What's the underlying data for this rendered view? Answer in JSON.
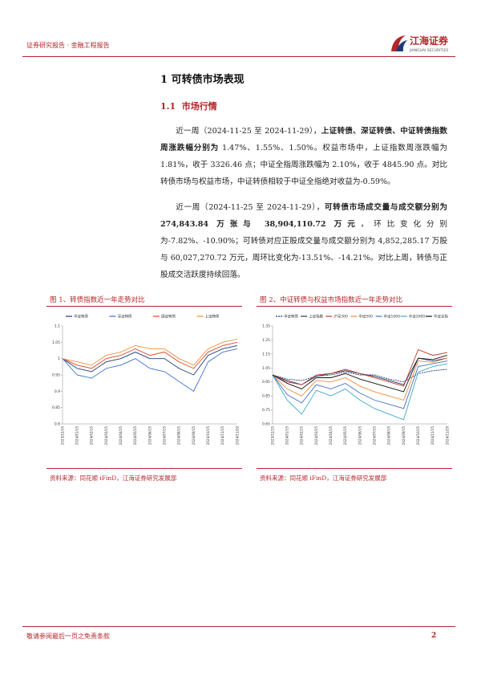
{
  "header": {
    "title": "证券研究报告 · 金融工程报告",
    "brand": "江海证券",
    "brand_en": "JIANGHAI SECURITIES"
  },
  "section": {
    "title": "1 可转债市场表现",
    "subtitle": "1.1  市场行情"
  },
  "paragraphs": [
    [
      {
        "text": "近一周（2024-11-25 至 2024-11-29），",
        "bold": false
      },
      {
        "text": "上证转债、深证转债、中证转债指数周涨跌幅分别为",
        "bold": true
      },
      {
        "text": " 1.47%、1.55%、1.50%。权益市场中，上证指数周涨跌幅为 1.81%，收于 3326.46 点；中证全指周涨跌幅为 2.10%，收于 4845.90 点。对比转债市场与权益市场，中证转债相较于中证全指绝对收益为-0.59%。",
        "bold": false
      }
    ],
    [
      {
        "text": "近一周（2024-11-25 至 2024-11-29），",
        "bold": false
      },
      {
        "text": "可转债市场成交量与成交额分别为 274,843.84 万张与 38,904,110.72 万元",
        "bold": true
      },
      {
        "text": "，环比变化分别为-7.82%、-10.90%；可转债对应正股成交量与成交额分别为 4,852,285.17 万股与 60,027,270.72 万元，周环比变化为-13.51%、-14.21%。对比上周，转债与正股成交活跃度持续回落。",
        "bold": false
      }
    ]
  ],
  "chart_data": [
    {
      "type": "line",
      "title": "图 1、转债指数近一年走势对比",
      "source": "资料来源：同花顺 iFinD，江海证券研究发展部",
      "categories": [
        "2023/12/15",
        "2024/01/15",
        "2024/02/15",
        "2024/03/15",
        "2024/04/15",
        "2024/05/15",
        "2024/06/15",
        "2024/07/15",
        "2024/08/15",
        "2024/09/15",
        "2024/10/15",
        "2024/11/15",
        "2024/11/29"
      ],
      "ylim": [
        0.8,
        1.1
      ],
      "yticks": [
        0.8,
        0.85,
        0.9,
        0.95,
        1,
        1.05,
        1.1
      ],
      "series": [
        {
          "name": "中证转债",
          "color": "#1f3a7a",
          "values": [
            1,
            0.97,
            0.96,
            0.99,
            1,
            1.02,
            1,
            1,
            0.97,
            0.95,
            1.01,
            1.03,
            1.04
          ]
        },
        {
          "name": "深证转债",
          "color": "#3a6fd8",
          "values": [
            1,
            0.95,
            0.94,
            0.97,
            0.98,
            1,
            0.97,
            0.96,
            0.93,
            0.9,
            0.99,
            1.02,
            1.03
          ]
        },
        {
          "name": "国证转债",
          "color": "#d9452b",
          "values": [
            1,
            0.98,
            0.97,
            1,
            1.01,
            1.03,
            1.01,
            1.02,
            0.99,
            0.97,
            1.02,
            1.04,
            1.05
          ]
        },
        {
          "name": "上证转债",
          "color": "#f0923a",
          "values": [
            1,
            0.99,
            0.98,
            1.01,
            1.02,
            1.04,
            1.03,
            1.03,
            1,
            0.98,
            1.03,
            1.05,
            1.06
          ]
        }
      ]
    },
    {
      "type": "line",
      "title": "图 2、中证转债与权益市场指数近一年走势对比",
      "source": "资料来源：同花顺 iFinD，江海证券研究发展部",
      "categories": [
        "2023/12/15",
        "2024/01/15",
        "2024/02/15",
        "2024/03/15",
        "2024/04/15",
        "2024/05/15",
        "2024/06/15",
        "2024/07/15",
        "2024/08/15",
        "2024/09/15",
        "2024/10/15",
        "2024/11/15",
        "2024/11/29"
      ],
      "ylim": [
        0.65,
        1.35
      ],
      "yticks": [
        0.65,
        0.75,
        0.85,
        0.95,
        1.05,
        1.15,
        1.25,
        1.35
      ],
      "series": [
        {
          "name": "中证转债",
          "color": "#1f3a7a",
          "dashed": true,
          "values": [
            1,
            0.97,
            0.96,
            0.99,
            1,
            1.02,
            1,
            1,
            0.97,
            0.95,
            1.01,
            1.03,
            1.04
          ]
        },
        {
          "name": "上证指数",
          "color": "#203864",
          "values": [
            1,
            0.96,
            0.93,
            0.99,
            1.01,
            1.03,
            1.01,
            0.99,
            0.96,
            0.93,
            1.12,
            1.1,
            1.12
          ]
        },
        {
          "name": "沪深300",
          "color": "#c0392b",
          "values": [
            1,
            0.95,
            0.93,
            1.0,
            1.01,
            1.04,
            1.01,
            0.98,
            0.95,
            0.92,
            1.18,
            1.14,
            1.16
          ]
        },
        {
          "name": "中证500",
          "color": "#f08a3a",
          "values": [
            1,
            0.9,
            0.85,
            0.96,
            0.95,
            0.98,
            0.92,
            0.88,
            0.85,
            0.82,
            1.1,
            1.09,
            1.12
          ]
        },
        {
          "name": "中证1000",
          "color": "#4472c4",
          "values": [
            1,
            0.86,
            0.8,
            0.93,
            0.9,
            0.94,
            0.87,
            0.82,
            0.79,
            0.76,
            1.06,
            1.08,
            1.1
          ]
        },
        {
          "name": "中证2000",
          "color": "#3fa7c9",
          "values": [
            1,
            0.82,
            0.72,
            0.89,
            0.85,
            0.9,
            0.82,
            0.76,
            0.72,
            0.68,
            1.02,
            1.06,
            1.08
          ]
        },
        {
          "name": "中证全指",
          "color": "#111111",
          "values": [
            1,
            0.94,
            0.9,
            0.98,
            0.98,
            1.01,
            0.97,
            0.94,
            0.91,
            0.88,
            1.12,
            1.11,
            1.14
          ]
        }
      ]
    }
  ],
  "footer": {
    "disclaimer": "敬请参阅最后一页之免责条款",
    "page": "2"
  }
}
